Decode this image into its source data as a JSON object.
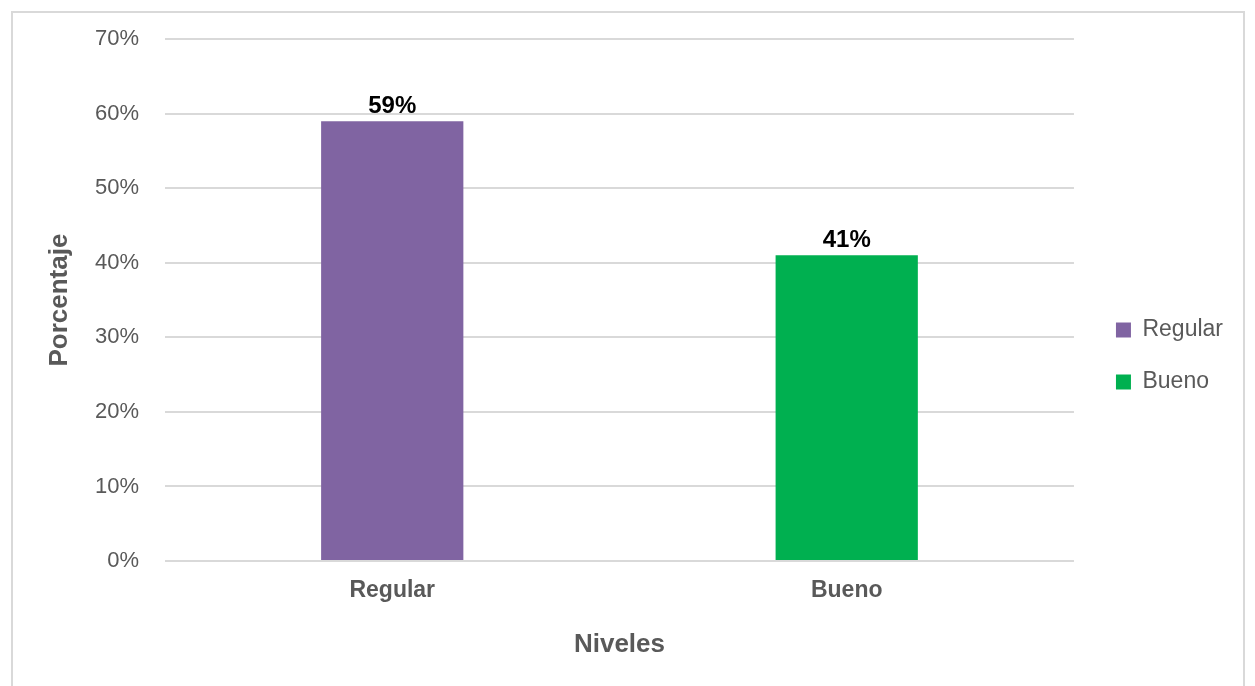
{
  "chart_data": {
    "type": "bar",
    "categories": [
      "Regular",
      "Bueno"
    ],
    "series": [
      {
        "name": "Regular",
        "color": "#8064a2",
        "values": [
          59,
          null
        ],
        "value_labels": [
          "59%",
          null
        ]
      },
      {
        "name": "Bueno",
        "color": "#00b050",
        "values": [
          null,
          41
        ],
        "value_labels": [
          null,
          "41%"
        ]
      }
    ],
    "xlabel": "Niveles",
    "ylabel": "Porcentaje",
    "ylim": [
      0,
      70
    ],
    "yticks": [
      {
        "value": 0,
        "label": "0%"
      },
      {
        "value": 10,
        "label": "10%"
      },
      {
        "value": 20,
        "label": "20%"
      },
      {
        "value": 30,
        "label": "30%"
      },
      {
        "value": 40,
        "label": "40%"
      },
      {
        "value": 50,
        "label": "50%"
      },
      {
        "value": 60,
        "label": "60%"
      },
      {
        "value": 70,
        "label": "70%"
      }
    ],
    "grid": "y",
    "legend": "right"
  }
}
